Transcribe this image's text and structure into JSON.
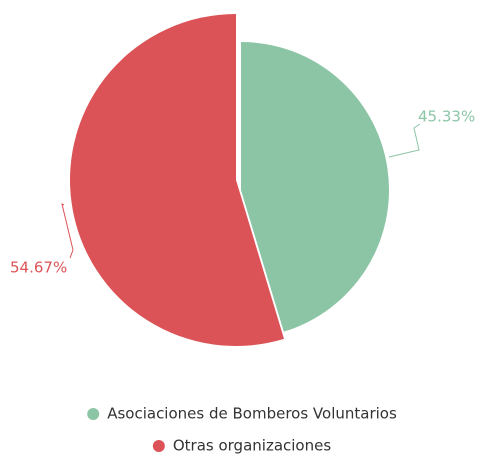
{
  "chart_data": {
    "type": "pie",
    "categories": [
      "Asociaciones de Bomberos Voluntarios",
      "Otras organizaciones"
    ],
    "values": [
      45.33,
      54.67
    ],
    "value_labels": [
      "45.33%",
      "54.67%"
    ],
    "colors": [
      "#8cc5a6",
      "#dc5357"
    ]
  }
}
